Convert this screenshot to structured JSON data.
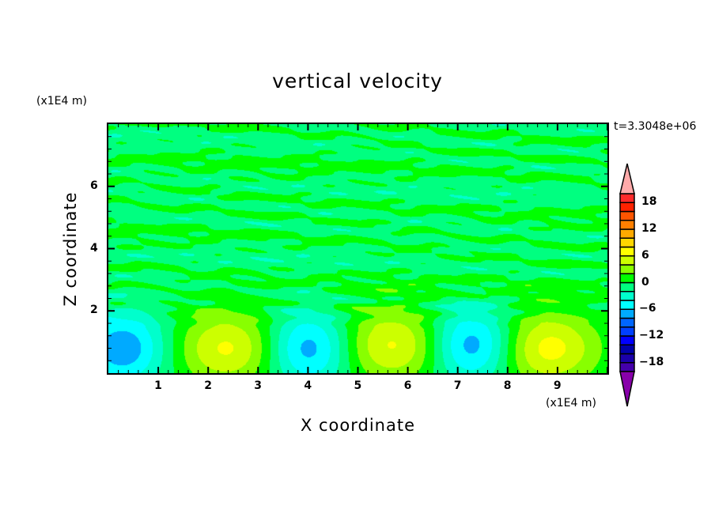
{
  "chart_data": {
    "type": "heatmap",
    "title": "vertical velocity",
    "xlabel": "X coordinate",
    "ylabel": "Z coordinate",
    "x_unit": "(x1E4 m)",
    "y_unit": "(x1E4 m)",
    "annotation": "t=3.3048e+06",
    "xlim": [
      0,
      10
    ],
    "ylim": [
      0,
      8
    ],
    "x_ticks": [
      "1",
      "2",
      "3",
      "4",
      "5",
      "6",
      "7",
      "8",
      "9"
    ],
    "y_ticks": [
      "2",
      "4",
      "6"
    ],
    "colorbar": {
      "levels": [
        -20,
        -18,
        -16,
        -14,
        -12,
        -10,
        -8,
        -6,
        -4,
        -2,
        0,
        2,
        4,
        6,
        8,
        10,
        12,
        14,
        16,
        18,
        20
      ],
      "labels": [
        "18",
        "12",
        "6",
        "0",
        "-6",
        "-12",
        "-18"
      ],
      "label_values": [
        18,
        12,
        6,
        0,
        -6,
        -12,
        -18
      ],
      "colors": [
        "#4400aa",
        "#1a00aa",
        "#0000aa",
        "#0000ff",
        "#0040ff",
        "#0066ff",
        "#00aaff",
        "#00ffff",
        "#00ffcc",
        "#00ff80",
        "#00ff00",
        "#88ff00",
        "#ccff00",
        "#ffff00",
        "#ffd700",
        "#ffaa00",
        "#ff7f00",
        "#ff5500",
        "#ff2200",
        "#ff2a2a"
      ],
      "over_color": "#ffaaaa",
      "under_color": "#8800aa"
    },
    "features": [
      {
        "kind": "updraft",
        "x": 2.4,
        "z": 0.8,
        "peak": 7
      },
      {
        "kind": "updraft",
        "x": 5.7,
        "z": 0.9,
        "peak": 7
      },
      {
        "kind": "updraft",
        "x": 8.8,
        "z": 0.8,
        "peak": 7.5
      },
      {
        "kind": "downdraft",
        "x": 0.3,
        "z": 0.8,
        "peak": -7
      },
      {
        "kind": "downdraft",
        "x": 4.0,
        "z": 0.8,
        "peak": -7
      },
      {
        "kind": "downdraft",
        "x": 7.3,
        "z": 0.9,
        "peak": -7.5
      }
    ]
  }
}
